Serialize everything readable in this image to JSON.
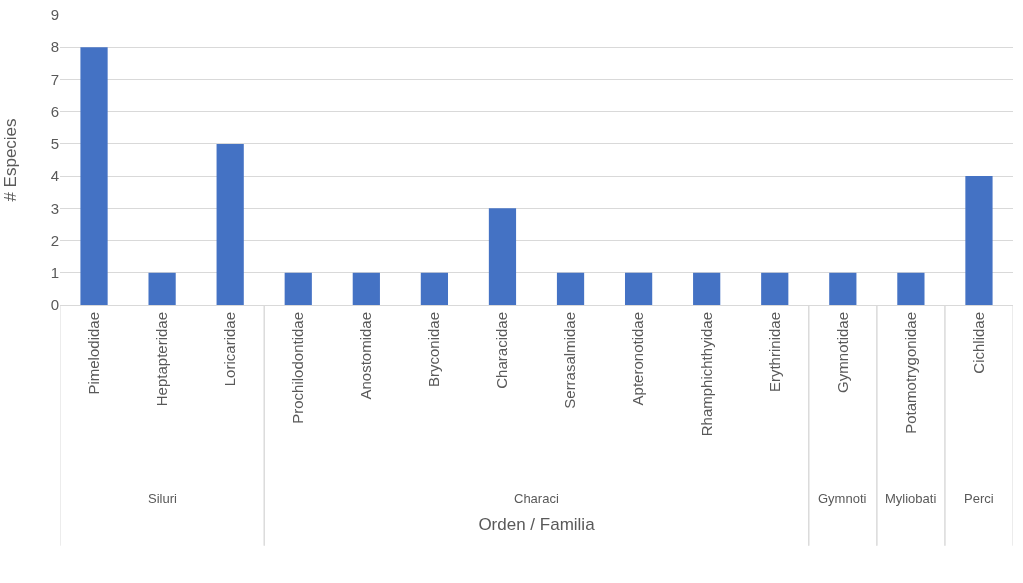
{
  "chart_data": {
    "type": "bar",
    "xlabel": "Orden / Familia",
    "ylabel": "# Especies",
    "categories": [
      "Pimelodidae",
      "Heptapteridae",
      "Loricaridae",
      "Prochilodontidae",
      "Anostomidae",
      "Bryconidae",
      "Characidae",
      "Serrasalmidae",
      "Apteronotidae",
      "Rhamphichthyidae",
      "Erythrinidae",
      "Gymnotidae",
      "Potamotrygonidae",
      "Cichlidae"
    ],
    "values": [
      8,
      1,
      5,
      1,
      1,
      1,
      3,
      1,
      1,
      1,
      1,
      1,
      1,
      4
    ],
    "color": "#4472c4",
    "ylim": [
      0,
      9
    ],
    "yticks": [
      0,
      1,
      2,
      3,
      4,
      5,
      6,
      7,
      8,
      9
    ],
    "grid": "y",
    "annotations": [
      "Siluri",
      "Characi",
      "Gymnoti",
      "Myliobati",
      "Perci"
    ]
  }
}
